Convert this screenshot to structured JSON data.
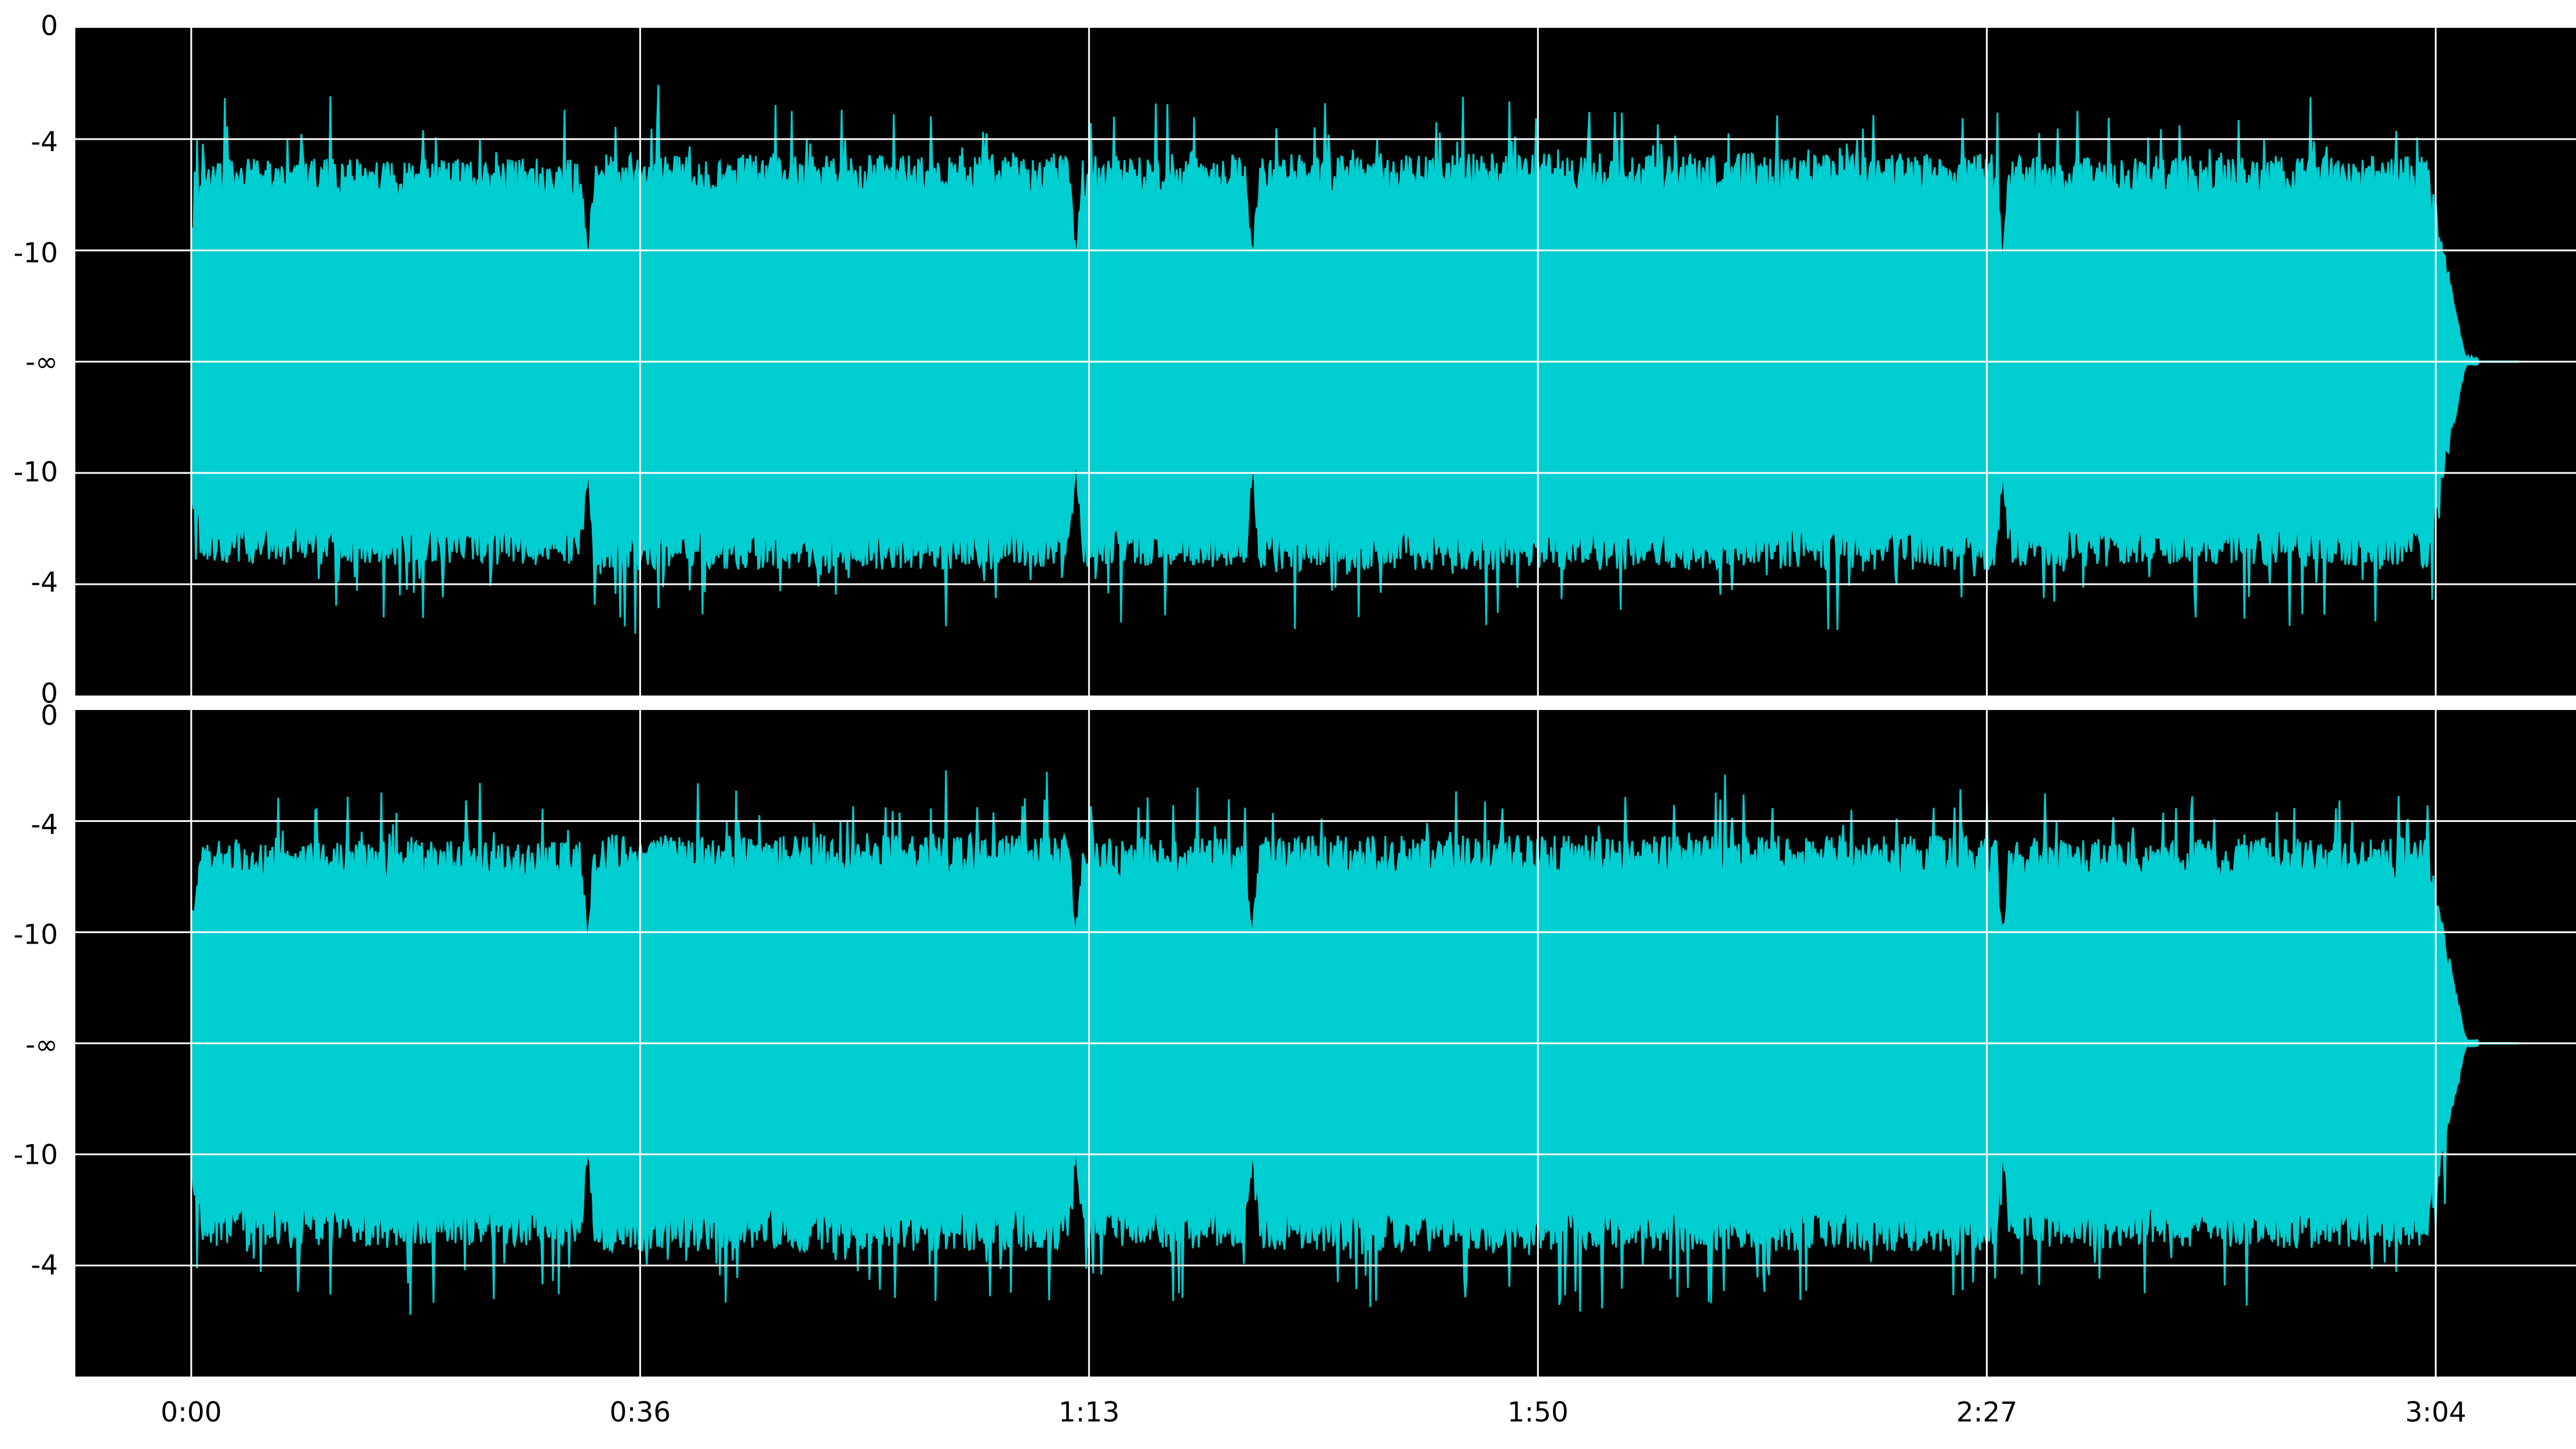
{
  "colors": {
    "waveform": "#00ced1",
    "plot_background": "#000000",
    "grid": "#ffffff",
    "page_background": "#ffffff",
    "tick_text": "#000000"
  },
  "chart_data": {
    "type": "area",
    "description_of_axes": "stereo audio waveform, two channels stacked, time on x axis, dB scale on y axis",
    "x_axis": {
      "tick_labels": [
        "0:00",
        "0:36",
        "1:13",
        "1:50",
        "2:27",
        "3:04"
      ],
      "tick_seconds": [
        0,
        36.8,
        73.6,
        110.4,
        147.2,
        184.0
      ],
      "range_seconds": [
        -9.5,
        195.5
      ],
      "grid": true
    },
    "channels": [
      {
        "id": "upper",
        "y_tick_labels": [
          "0",
          "-4",
          "-10",
          "-∞",
          "-10",
          "-4",
          "0"
        ],
        "grid": true
      },
      {
        "id": "lower",
        "y_tick_labels": [
          "0",
          "-4",
          "-10",
          "-∞",
          "-10",
          "-4"
        ],
        "grid": true
      }
    ],
    "signal": {
      "start_seconds": 0.0,
      "end_seconds": 187.5,
      "fade_out_start_seconds": 183.5,
      "section_breaks_seconds": [
        32.5,
        72.5,
        87.0,
        148.5
      ],
      "sections": [
        {
          "from": 0.0,
          "to": 32.5,
          "level": 0.78
        },
        {
          "from": 32.5,
          "to": 72.5,
          "level": 0.8
        },
        {
          "from": 72.5,
          "to": 87.0,
          "level": 0.79
        },
        {
          "from": 87.0,
          "to": 148.5,
          "level": 0.8
        },
        {
          "from": 148.5,
          "to": 183.5,
          "level": 0.79
        }
      ]
    }
  }
}
